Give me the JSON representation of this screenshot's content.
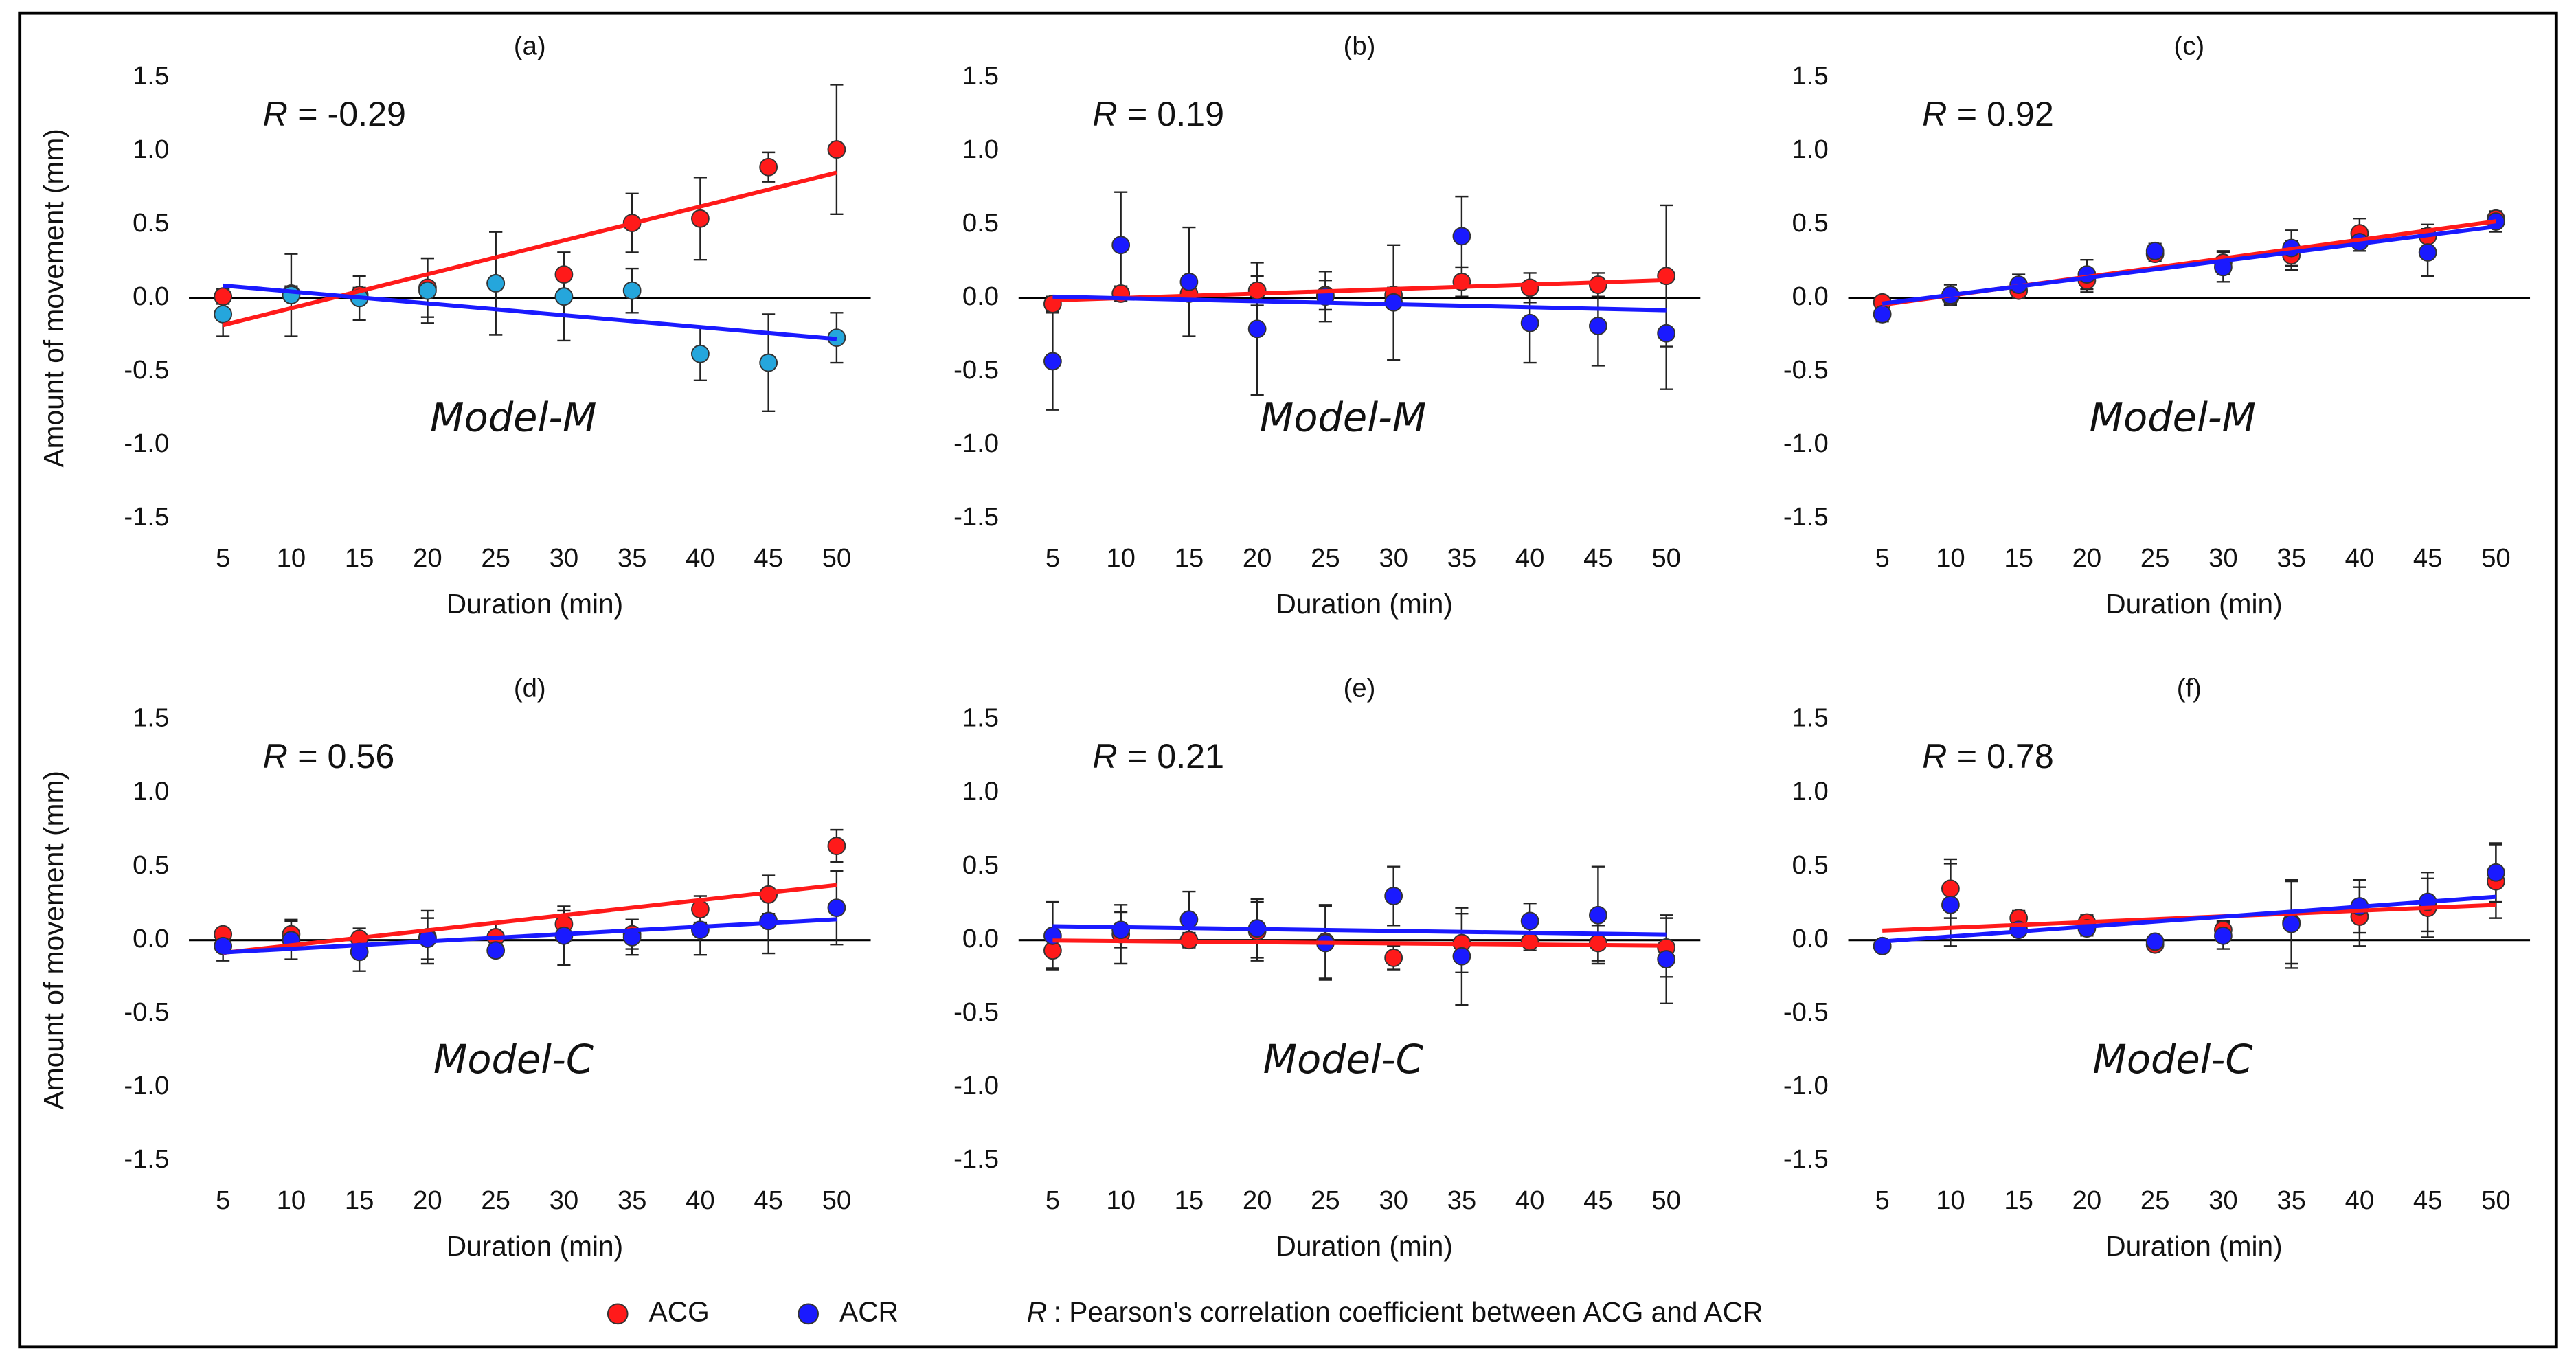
{
  "chart_data": [
    {
      "type": "scatter",
      "title": "(a)",
      "xlabel": "Duration (min)",
      "ylabel": "Amount of movement (mm)",
      "annotation": {
        "symbol": "R",
        "text": "= -0.29"
      },
      "model": "Model-M",
      "trendline": true,
      "x": [
        5,
        10,
        15,
        20,
        25,
        30,
        35,
        40,
        45,
        50
      ],
      "xlim": [
        2.5,
        52.5
      ],
      "xticks": [
        5,
        10,
        15,
        20,
        25,
        30,
        35,
        40,
        45,
        50
      ],
      "ylim": [
        -1.5,
        1.5
      ],
      "yticks": [
        -1.5,
        {
          "value": -1,
          "label": "-1.0"
        },
        -0.5,
        {
          "value": 0,
          "label": "0.0"
        },
        0.5,
        {
          "value": 1,
          "label": "1.0"
        },
        1.5
      ],
      "series": [
        {
          "name": "ACG",
          "color": "#ff1a1a",
          "values": [
            0.01,
            0.03,
            0.02,
            0.07,
            0.1,
            0.16,
            0.51,
            0.54,
            0.89,
            1.01
          ],
          "errors": [
            0.05,
            0.05,
            0.05,
            0.2,
            0.35,
            0.15,
            0.2,
            0.28,
            0.1,
            0.44
          ]
        },
        {
          "name": "ACR",
          "color": "#1a1aff",
          "marker_color": "#25a6dc",
          "values": [
            -0.11,
            0.02,
            0.0,
            0.05,
            0.1,
            0.01,
            0.05,
            -0.38,
            -0.44,
            -0.27
          ],
          "errors": [
            0.15,
            0.28,
            0.15,
            0.22,
            0.35,
            0.3,
            0.15,
            0.18,
            0.33,
            0.17
          ]
        }
      ]
    },
    {
      "type": "scatter",
      "title": "(b)",
      "xlabel": "Duration (min)",
      "annotation": {
        "symbol": "R",
        "text": "= 0.19"
      },
      "model": "Model-M",
      "trendline": true,
      "x": [
        5,
        10,
        15,
        20,
        25,
        30,
        35,
        40,
        45,
        50
      ],
      "xlim": [
        2.5,
        52.5
      ],
      "xticks": [
        5,
        10,
        15,
        20,
        25,
        30,
        35,
        40,
        45,
        50
      ],
      "ylim": [
        -1.5,
        1.5
      ],
      "yticks": [
        -1.5,
        {
          "value": -1,
          "label": "-1.0"
        },
        -0.5,
        {
          "value": 0,
          "label": "0.0"
        },
        0.5,
        {
          "value": 1,
          "label": "1.0"
        },
        1.5
      ],
      "series": [
        {
          "name": "ACG",
          "color": "#ff1a1a",
          "values": [
            -0.04,
            0.03,
            0.03,
            0.05,
            0.02,
            0.02,
            0.11,
            0.07,
            0.09,
            0.15
          ],
          "errors": [
            0.05,
            0.05,
            0.05,
            0.1,
            0.1,
            0.05,
            0.1,
            0.1,
            0.08,
            0.48
          ]
        },
        {
          "name": "ACR",
          "color": "#1a1aff",
          "values": [
            -0.43,
            0.36,
            0.11,
            -0.21,
            0.01,
            -0.03,
            0.42,
            -0.17,
            -0.19,
            -0.24
          ],
          "errors": [
            0.33,
            0.36,
            0.37,
            0.45,
            0.17,
            0.39,
            0.27,
            0.27,
            0.27,
            0.38
          ]
        }
      ]
    },
    {
      "type": "scatter",
      "title": "(c)",
      "xlabel": "Duration (min)",
      "annotation": {
        "symbol": "R",
        "text": "= 0.92"
      },
      "model": "Model-M",
      "trendline": true,
      "x": [
        5,
        10,
        15,
        20,
        25,
        30,
        35,
        40,
        45,
        50
      ],
      "xlim": [
        2.5,
        52.5
      ],
      "xticks": [
        5,
        10,
        15,
        20,
        25,
        30,
        35,
        40,
        45,
        50
      ],
      "ylim": [
        -1.5,
        1.5
      ],
      "yticks": [
        -1.5,
        {
          "value": -1,
          "label": "-1.0"
        },
        -0.5,
        {
          "value": 0,
          "label": "0.0"
        },
        0.5,
        {
          "value": 1,
          "label": "1.0"
        },
        1.5
      ],
      "series": [
        {
          "name": "ACG",
          "color": "#ff1a1a",
          "values": [
            -0.03,
            0.01,
            0.05,
            0.12,
            0.3,
            0.24,
            0.29,
            0.44,
            0.42,
            0.54
          ],
          "errors": [
            0.03,
            0.05,
            0.05,
            0.08,
            0.05,
            0.08,
            0.1,
            0.1,
            0.08,
            0.05
          ]
        },
        {
          "name": "ACR",
          "color": "#1a1aff",
          "values": [
            -0.11,
            0.02,
            0.09,
            0.16,
            0.32,
            0.21,
            0.34,
            0.38,
            0.31,
            0.52
          ],
          "errors": [
            0.05,
            0.07,
            0.07,
            0.1,
            0.05,
            0.1,
            0.12,
            0.06,
            0.16,
            0.07
          ]
        }
      ]
    },
    {
      "type": "scatter",
      "title": "(d)",
      "xlabel": "Duration (min)",
      "ylabel": "Amount of movement (mm)",
      "annotation": {
        "symbol": "R",
        "text": "= 0.56"
      },
      "model": "Model-C",
      "trendline": true,
      "x": [
        5,
        10,
        15,
        20,
        25,
        30,
        35,
        40,
        45,
        50
      ],
      "xlim": [
        2.5,
        52.5
      ],
      "xticks": [
        5,
        10,
        15,
        20,
        25,
        30,
        35,
        40,
        45,
        50
      ],
      "ylim": [
        -1.5,
        1.5
      ],
      "yticks": [
        -1.5,
        {
          "value": -1,
          "label": "-1.0"
        },
        -0.5,
        {
          "value": 0,
          "label": "0.0"
        },
        0.5,
        {
          "value": 1,
          "label": "1.0"
        },
        1.5
      ],
      "series": [
        {
          "name": "ACG",
          "color": "#ff1a1a",
          "values": [
            0.04,
            0.04,
            0.01,
            0.02,
            0.02,
            0.11,
            0.04,
            0.21,
            0.31,
            0.64
          ],
          "errors": [
            0.04,
            0.1,
            0.07,
            0.18,
            0.1,
            0.09,
            0.1,
            0.09,
            0.13,
            0.11
          ]
        },
        {
          "name": "ACR",
          "color": "#1a1aff",
          "values": [
            -0.04,
            0.0,
            -0.08,
            0.01,
            -0.07,
            0.03,
            0.02,
            0.07,
            0.13,
            0.22
          ],
          "errors": [
            0.1,
            0.13,
            0.13,
            0.14,
            0.04,
            0.2,
            0.12,
            0.17,
            0.22,
            0.25
          ]
        }
      ]
    },
    {
      "type": "scatter",
      "title": "(e)",
      "xlabel": "Duration (min)",
      "annotation": {
        "symbol": "R",
        "text": "= 0.21"
      },
      "model": "Model-C",
      "trendline": true,
      "x": [
        5,
        10,
        15,
        20,
        25,
        30,
        35,
        40,
        45,
        50
      ],
      "xlim": [
        2.5,
        52.5
      ],
      "xticks": [
        5,
        10,
        15,
        20,
        25,
        30,
        35,
        40,
        45,
        50
      ],
      "ylim": [
        -1.5,
        1.5
      ],
      "yticks": [
        -1.5,
        {
          "value": -1,
          "label": "-1.0"
        },
        -0.5,
        {
          "value": 0,
          "label": "0.0"
        },
        0.5,
        {
          "value": 1,
          "label": "1.0"
        },
        1.5
      ],
      "series": [
        {
          "name": "ACG",
          "color": "#ff1a1a",
          "values": [
            -0.07,
            0.04,
            0.0,
            0.06,
            -0.01,
            -0.12,
            -0.02,
            -0.01,
            -0.02,
            -0.05
          ],
          "errors": [
            0.12,
            0.2,
            0.05,
            0.2,
            0.25,
            0.08,
            0.2,
            0.06,
            0.12,
            0.2
          ]
        },
        {
          "name": "ACR",
          "color": "#1a1aff",
          "values": [
            0.03,
            0.07,
            0.14,
            0.08,
            -0.02,
            0.3,
            -0.11,
            0.13,
            0.17,
            -0.13
          ],
          "errors": [
            0.23,
            0.12,
            0.19,
            0.2,
            0.25,
            0.2,
            0.33,
            0.12,
            0.33,
            0.3
          ]
        }
      ]
    },
    {
      "type": "scatter",
      "title": "(f)",
      "xlabel": "Duration (min)",
      "annotation": {
        "symbol": "R",
        "text": "= 0.78"
      },
      "model": "Model-C",
      "trendline": true,
      "x": [
        5,
        10,
        15,
        20,
        25,
        30,
        35,
        40,
        45,
        50
      ],
      "xlim": [
        2.5,
        52.5
      ],
      "xticks": [
        5,
        10,
        15,
        20,
        25,
        30,
        35,
        40,
        45,
        50
      ],
      "ylim": [
        -1.5,
        1.5
      ],
      "yticks": [
        -1.5,
        {
          "value": -1,
          "label": "-1.0"
        },
        -0.5,
        {
          "value": 0,
          "label": "0.0"
        },
        0.5,
        {
          "value": 1,
          "label": "1.0"
        },
        1.5
      ],
      "series": [
        {
          "name": "ACG",
          "color": "#ff1a1a",
          "values": [
            -0.04,
            0.35,
            0.15,
            0.12,
            -0.03,
            0.07,
            0.12,
            0.16,
            0.22,
            0.4
          ],
          "errors": [
            0.03,
            0.2,
            0.05,
            0.05,
            0.03,
            0.06,
            0.28,
            0.2,
            0.2,
            0.25
          ]
        },
        {
          "name": "ACR",
          "color": "#1a1aff",
          "values": [
            -0.04,
            0.24,
            0.07,
            0.08,
            -0.01,
            0.03,
            0.11,
            0.23,
            0.26,
            0.46
          ],
          "errors": [
            0.03,
            0.28,
            0.03,
            0.05,
            0.03,
            0.09,
            0.3,
            0.18,
            0.2,
            0.2
          ]
        }
      ]
    }
  ],
  "legend_note": {
    "symbol": "R",
    "text": ": Pearson's correlation coefficient between ACG and ACR"
  }
}
